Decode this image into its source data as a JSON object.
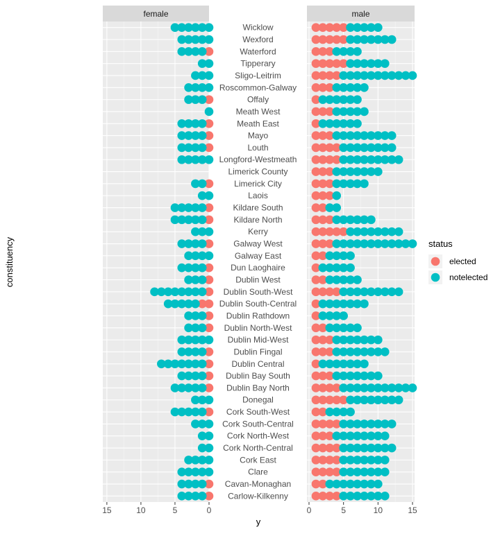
{
  "chart_data": {
    "type": "scatter",
    "description_free": true,
    "facets": [
      "female",
      "male"
    ],
    "xlabel": "y",
    "ylabel": "constituency",
    "legend": {
      "title": "status",
      "position": "right",
      "entries": [
        {
          "label": "elected",
          "color": "#F8766D"
        },
        {
          "label": "notelected",
          "color": "#00BFC4"
        }
      ]
    },
    "female_axis": {
      "ticks": [
        15,
        10,
        5,
        0
      ],
      "reversed": true,
      "lim": [
        0,
        15.6
      ]
    },
    "male_axis": {
      "ticks": [
        0,
        5,
        10,
        15
      ],
      "lim": [
        -0.3,
        15.3
      ]
    },
    "grid": true,
    "constituencies": [
      "Wicklow",
      "Wexford",
      "Waterford",
      "Tipperary",
      "Sligo-Leitrim",
      "Roscommon-Galway",
      "Offaly",
      "Meath West",
      "Meath East",
      "Mayo",
      "Louth",
      "Longford-Westmeath",
      "Limerick County",
      "Limerick City",
      "Laois",
      "Kildare South",
      "Kildare North",
      "Kerry",
      "Galway West",
      "Galway East",
      "Dun Laoghaire",
      "Dublin West",
      "Dublin South-West",
      "Dublin South-Central",
      "Dublin Rathdown",
      "Dublin North-West",
      "Dublin Mid-West",
      "Dublin Fingal",
      "Dublin Central",
      "Dublin Bay South",
      "Dublin Bay North",
      "Donegal",
      "Cork South-West",
      "Cork South-Central",
      "Cork North-West",
      "Cork North-Central",
      "Cork East",
      "Clare",
      "Cavan-Monaghan",
      "Carlow-Kilkenny"
    ],
    "female_elected": [
      0,
      0,
      1,
      0,
      0,
      0,
      1,
      0,
      1,
      1,
      1,
      0,
      0,
      1,
      0,
      1,
      1,
      0,
      1,
      0,
      1,
      1,
      1,
      2,
      1,
      1,
      0,
      1,
      1,
      1,
      1,
      0,
      1,
      0,
      0,
      0,
      0,
      0,
      1,
      1
    ],
    "female_notelected": [
      6,
      5,
      4,
      2,
      3,
      4,
      3,
      1,
      4,
      4,
      4,
      5,
      0,
      2,
      2,
      5,
      5,
      3,
      4,
      4,
      4,
      3,
      8,
      5,
      3,
      3,
      5,
      4,
      7,
      4,
      5,
      3,
      5,
      3,
      2,
      2,
      4,
      5,
      4,
      4
    ],
    "male_elected": [
      5,
      5,
      3,
      5,
      4,
      3,
      1,
      3,
      1,
      3,
      4,
      4,
      3,
      3,
      3,
      2,
      3,
      5,
      3,
      2,
      1,
      2,
      4,
      1,
      1,
      2,
      3,
      3,
      1,
      3,
      4,
      5,
      2,
      4,
      3,
      4,
      4,
      4,
      2,
      4
    ],
    "male_notelected": [
      5,
      7,
      4,
      6,
      11,
      5,
      6,
      5,
      6,
      9,
      8,
      9,
      7,
      5,
      1,
      2,
      6,
      8,
      12,
      4,
      5,
      5,
      9,
      7,
      4,
      5,
      7,
      8,
      7,
      7,
      11,
      8,
      4,
      8,
      8,
      8,
      7,
      7,
      8,
      7
    ]
  }
}
